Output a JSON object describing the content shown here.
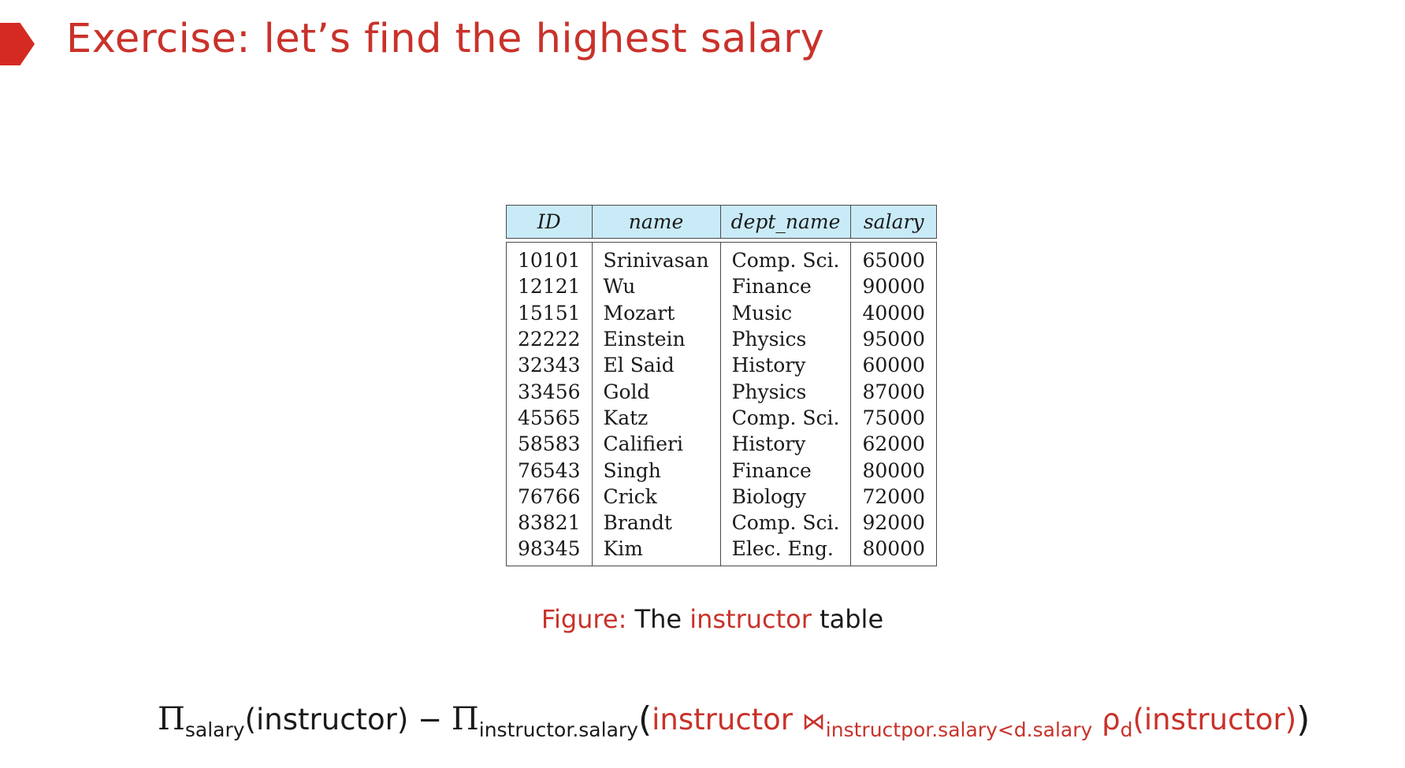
{
  "slide": {
    "title": "Exercise: let’s find the highest salary"
  },
  "table": {
    "headers": [
      "ID",
      "name",
      "dept_name",
      "salary"
    ],
    "rows": [
      [
        "10101",
        "Srinivasan",
        "Comp. Sci.",
        "65000"
      ],
      [
        "12121",
        "Wu",
        "Finance",
        "90000"
      ],
      [
        "15151",
        "Mozart",
        "Music",
        "40000"
      ],
      [
        "22222",
        "Einstein",
        "Physics",
        "95000"
      ],
      [
        "32343",
        "El Said",
        "History",
        "60000"
      ],
      [
        "33456",
        "Gold",
        "Physics",
        "87000"
      ],
      [
        "45565",
        "Katz",
        "Comp. Sci.",
        "75000"
      ],
      [
        "58583",
        "Califieri",
        "History",
        "62000"
      ],
      [
        "76543",
        "Singh",
        "Finance",
        "80000"
      ],
      [
        "76766",
        "Crick",
        "Biology",
        "72000"
      ],
      [
        "83821",
        "Brandt",
        "Comp. Sci.",
        "92000"
      ],
      [
        "98345",
        "Kim",
        "Elec. Eng.",
        "80000"
      ]
    ],
    "header_color": "#c9ebf7"
  },
  "caption": {
    "label": "Figure:",
    "pre": "The",
    "highlight": "instructor",
    "post": "table"
  },
  "formula": {
    "pi1": "Π",
    "sub1": "salary",
    "arg1": "(instructor)",
    "minus": "−",
    "pi2": "Π",
    "sub2": "instructor.salary",
    "open_paren": "(",
    "rel1": "instructor",
    "join_symbol": "⋈",
    "join_condition": "instructpor.salary<d.salary",
    "rho": "ρ",
    "rho_sub": "d",
    "rel2": "(instructor)",
    "close_paren": ")"
  },
  "colors": {
    "accent": "#c9322a",
    "marker": "#d42a22"
  }
}
